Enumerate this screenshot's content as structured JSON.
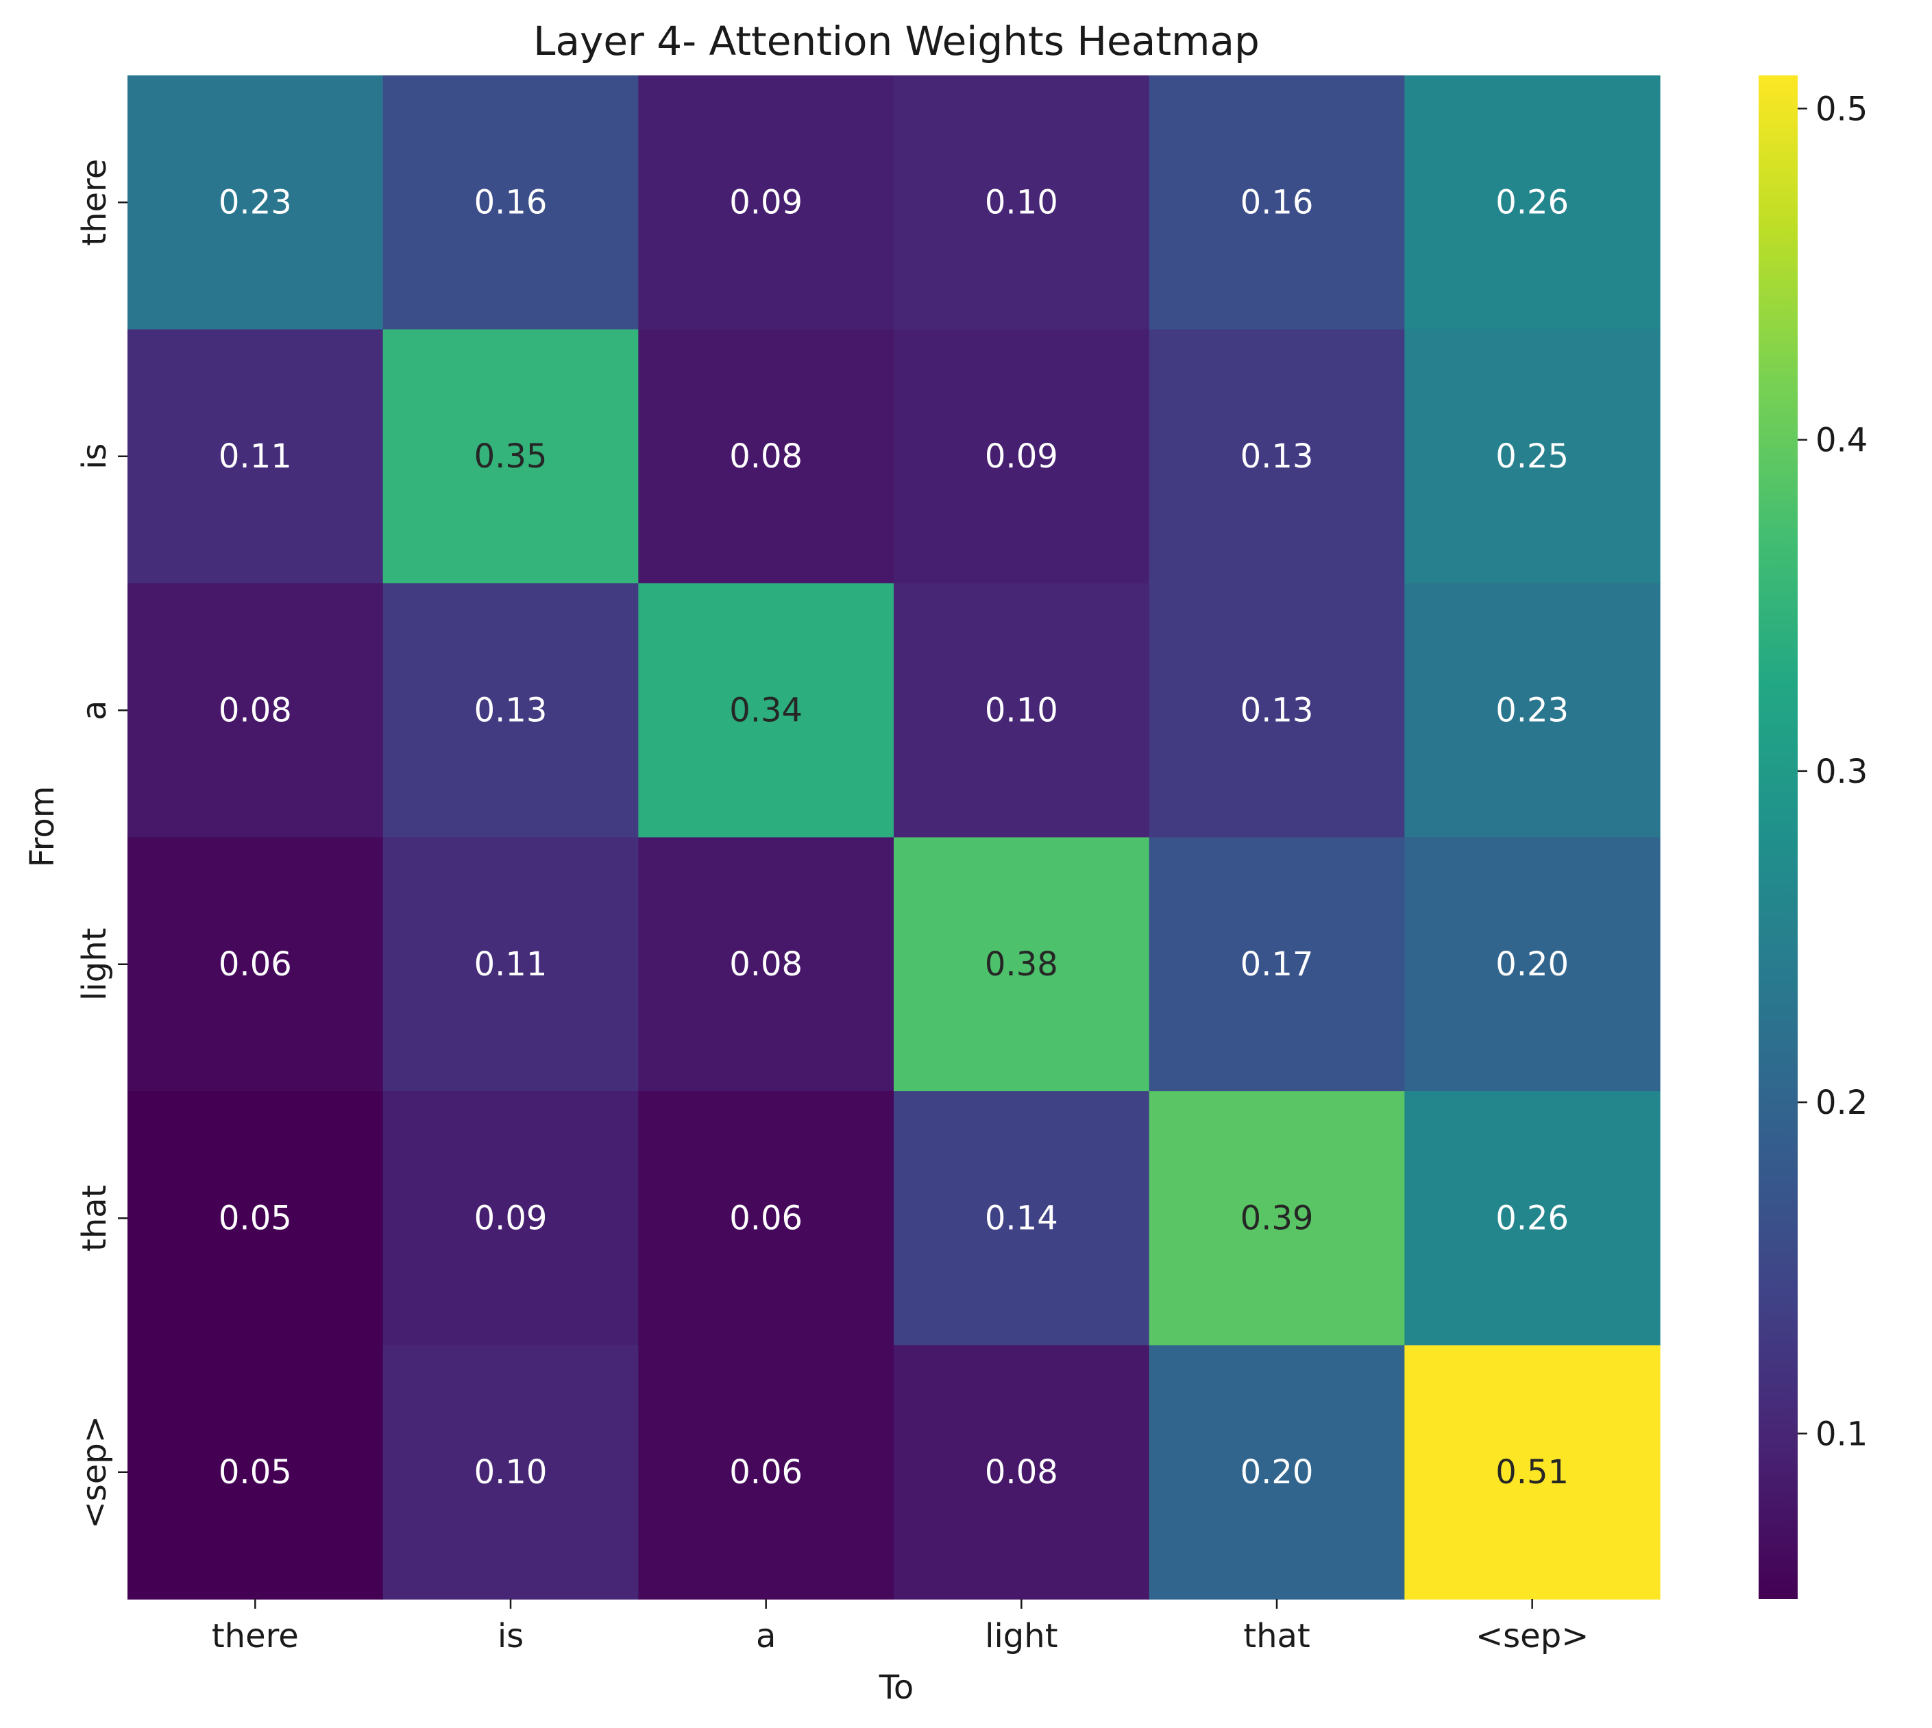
{
  "chart_data": {
    "type": "heatmap",
    "title": "Layer 4- Attention Weights Heatmap",
    "xlabel": "To",
    "ylabel": "From",
    "x_categories": [
      "there",
      "is",
      "a",
      "light",
      "that",
      "<sep>"
    ],
    "y_categories": [
      "there",
      "is",
      "a",
      "light",
      "that",
      "<sep>"
    ],
    "values": [
      [
        0.23,
        0.16,
        0.09,
        0.1,
        0.16,
        0.26
      ],
      [
        0.11,
        0.35,
        0.08,
        0.09,
        0.13,
        0.25
      ],
      [
        0.08,
        0.13,
        0.34,
        0.1,
        0.13,
        0.23
      ],
      [
        0.06,
        0.11,
        0.08,
        0.38,
        0.17,
        0.2
      ],
      [
        0.05,
        0.09,
        0.06,
        0.14,
        0.39,
        0.26
      ],
      [
        0.05,
        0.1,
        0.06,
        0.08,
        0.2,
        0.51
      ]
    ],
    "value_labels": [
      [
        "0.23",
        "0.16",
        "0.09",
        "0.10",
        "0.16",
        "0.26"
      ],
      [
        "0.11",
        "0.35",
        "0.08",
        "0.09",
        "0.13",
        "0.25"
      ],
      [
        "0.08",
        "0.13",
        "0.34",
        "0.10",
        "0.13",
        "0.23"
      ],
      [
        "0.06",
        "0.11",
        "0.08",
        "0.38",
        "0.17",
        "0.20"
      ],
      [
        "0.05",
        "0.09",
        "0.06",
        "0.14",
        "0.39",
        "0.26"
      ],
      [
        "0.05",
        "0.10",
        "0.06",
        "0.08",
        "0.20",
        "0.51"
      ]
    ],
    "colormap": "viridis",
    "color_range": [
      0.05,
      0.51
    ],
    "colorbar_ticks": [
      0.1,
      0.2,
      0.3,
      0.4,
      0.5
    ],
    "colorbar_tick_labels": [
      "0.1",
      "0.2",
      "0.3",
      "0.4",
      "0.5"
    ],
    "legend": "colorbar-right",
    "grid": false,
    "colors": {
      "text_light": "#ffffff",
      "text_dark": "#262626",
      "axis": "#1a1a1a"
    }
  }
}
